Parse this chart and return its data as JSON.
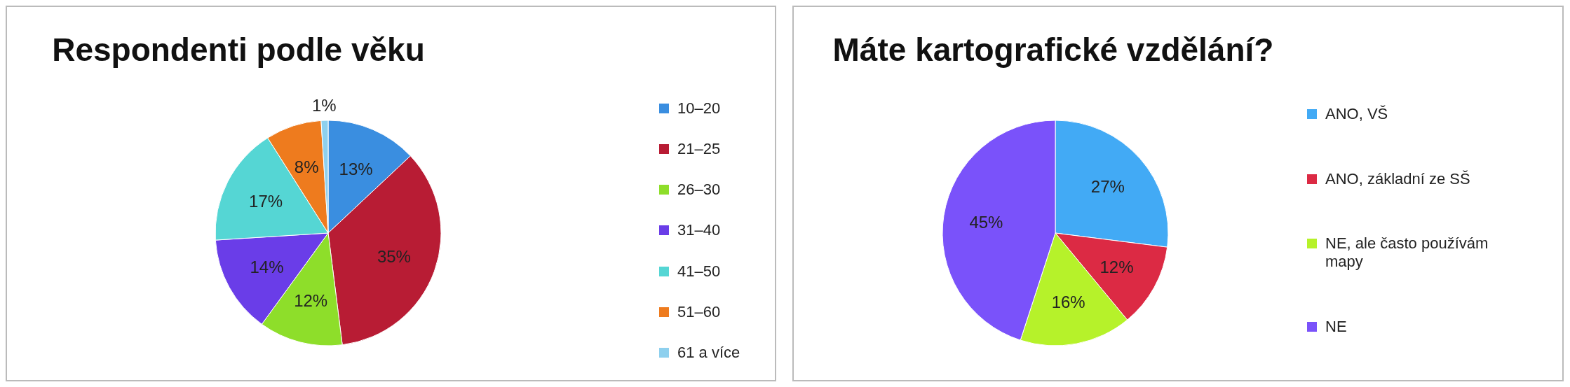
{
  "chart_data": [
    {
      "type": "pie",
      "title": "Respondenti podle věku",
      "categories": [
        "10–20",
        "21–25",
        "26–30",
        "31–40",
        "41–50",
        "51–60",
        "61 a více"
      ],
      "values": [
        13,
        35,
        12,
        14,
        17,
        8,
        1
      ],
      "value_labels": [
        "13%",
        "35%",
        "12%",
        "14%",
        "17%",
        "8%",
        "1%"
      ],
      "colors": [
        "#3a8ee0",
        "#b81c34",
        "#8ede2a",
        "#6a3de8",
        "#55d6d4",
        "#ee7b1e",
        "#8ed0ee"
      ],
      "legend": "right"
    },
    {
      "type": "pie",
      "title": "Máte kartografické vzdělání?",
      "categories": [
        "ANO, VŠ",
        "ANO, základní ze SŠ",
        "NE, ale často používám mapy",
        "NE"
      ],
      "values": [
        27,
        12,
        16,
        45
      ],
      "value_labels": [
        "27%",
        "12%",
        "16%",
        "45%"
      ],
      "colors": [
        "#42aaf5",
        "#dc2a44",
        "#b6f22a",
        "#7a52fa"
      ],
      "legend": "right"
    }
  ]
}
